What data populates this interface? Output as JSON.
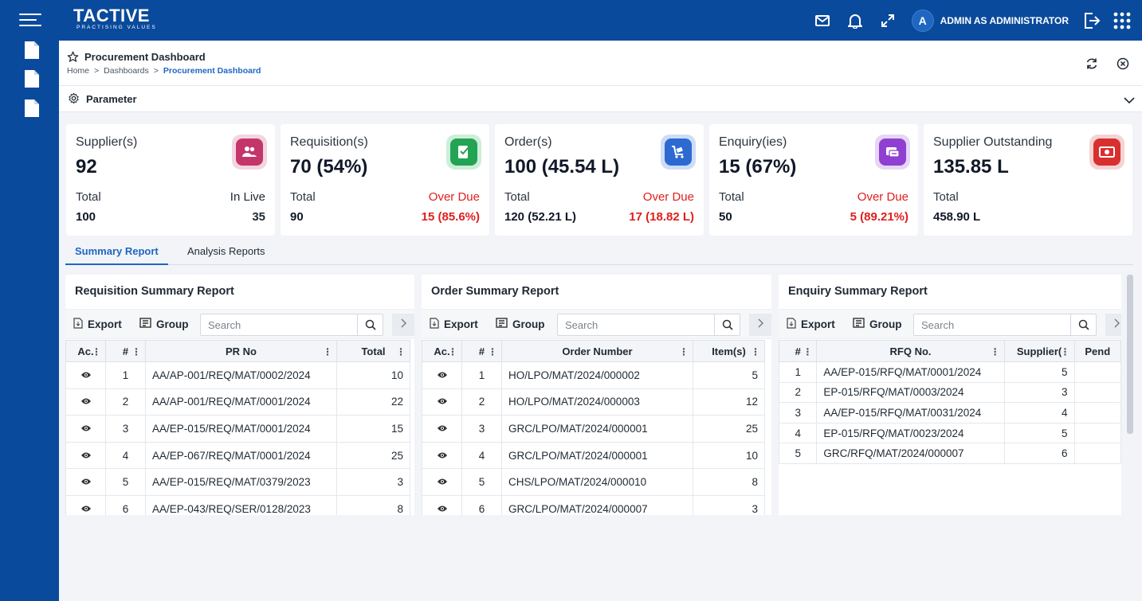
{
  "app": {
    "logo_brand": "TACTIVE",
    "logo_tagline": "PRACTISING VALUES",
    "user_initial": "A",
    "user_name": "ADMIN AS ADMINISTRATOR",
    "icons": [
      "menu-icon",
      "mail-icon",
      "bell-icon",
      "expand-icon",
      "logout-icon",
      "apps-grid-icon"
    ]
  },
  "sidebar": {
    "items": [
      "document-icon",
      "document-icon",
      "document-icon"
    ]
  },
  "page": {
    "title": "Procurement Dashboard",
    "breadcrumb": [
      "Home",
      "Dashboards",
      "Procurement Dashboard"
    ],
    "parameter_label": "Parameter"
  },
  "cards": [
    {
      "label": "Supplier(s)",
      "value": "92",
      "sub1_label": "Total",
      "sub1_value": "100",
      "sub2_label": "In Live",
      "sub2_value": "35",
      "sub2_color": "#1f2933",
      "badge_outer": "#f3d5e0",
      "badge_inner": "#c4366b",
      "icon": "users-icon"
    },
    {
      "label": "Requisition(s)",
      "value": "70 (54%)",
      "sub1_label": "Total",
      "sub1_value": "90",
      "sub2_label": "Over Due",
      "sub2_value": "15 (85.6%)",
      "sub2_color": "#e01e1e",
      "badge_outer": "#cdeed9",
      "badge_inner": "#23a354",
      "icon": "requisition-icon"
    },
    {
      "label": "Order(s)",
      "value": "100 (45.54 L)",
      "sub1_label": "Total",
      "sub1_value": "120 (52.21 L)",
      "sub2_label": "Over Due",
      "sub2_value": "17 (18.82 L)",
      "sub2_color": "#e01e1e",
      "badge_outer": "#cfdcf5",
      "badge_inner": "#2c6ad1",
      "icon": "cart-icon"
    },
    {
      "label": "Enquiry(ies)",
      "value": "15 (67%)",
      "sub1_label": "Total",
      "sub1_value": "50",
      "sub2_label": "Over Due",
      "sub2_value": "5 (89.21%)",
      "sub2_color": "#e01e1e",
      "badge_outer": "#e6d6f5",
      "badge_inner": "#8f3fd1",
      "icon": "enquiry-icon"
    },
    {
      "label": "Supplier Outstanding",
      "value": "135.85 L",
      "sub1_label": "Total",
      "sub1_value": "458.90 L",
      "sub2_label": "",
      "sub2_value": "",
      "sub2_color": "#1f2933",
      "badge_outer": "#f6d3d3",
      "badge_inner": "#d8302f",
      "icon": "cash-icon"
    }
  ],
  "tabs": [
    "Summary Report",
    "Analysis Reports"
  ],
  "toolbar": {
    "export": "Export",
    "group": "Group",
    "search_placeholder": "Search"
  },
  "requisition_report": {
    "title": "Requisition Summary Report",
    "columns": [
      "Ac.",
      "#",
      "PR No",
      "Total"
    ],
    "rows": [
      [
        "1",
        "AA/AP-001/REQ/MAT/0002/2024",
        "10"
      ],
      [
        "2",
        "AA/AP-001/REQ/MAT/0001/2024",
        "22"
      ],
      [
        "3",
        "AA/EP-015/REQ/MAT/0001/2024",
        "15"
      ],
      [
        "4",
        "AA/EP-067/REQ/MAT/0001/2024",
        "25"
      ],
      [
        "5",
        "AA/EP-015/REQ/MAT/0379/2023",
        "3"
      ],
      [
        "6",
        "AA/EP-043/REQ/SER/0128/2023",
        "8"
      ]
    ]
  },
  "order_report": {
    "title": "Order Summary Report",
    "columns": [
      "Ac.",
      "#",
      "Order Number",
      "Item(s)"
    ],
    "rows": [
      [
        "1",
        "HO/LPO/MAT/2024/000002",
        "5"
      ],
      [
        "2",
        "HO/LPO/MAT/2024/000003",
        "12"
      ],
      [
        "3",
        "GRC/LPO/MAT/2024/000001",
        "25"
      ],
      [
        "4",
        "GRC/LPO/MAT/2024/000001",
        "10"
      ],
      [
        "5",
        "CHS/LPO/MAT/2024/000010",
        "8"
      ],
      [
        "6",
        "GRC/LPO/MAT/2024/000007",
        "3"
      ]
    ]
  },
  "enquiry_report": {
    "title": "Enquiry Summary Report",
    "columns": [
      "#",
      "RFQ No.",
      "Supplier(",
      "Pend"
    ],
    "rows": [
      [
        "1",
        "AA/EP-015/RFQ/MAT/0001/2024",
        "5"
      ],
      [
        "2",
        "EP-015/RFQ/MAT/0003/2024",
        "3"
      ],
      [
        "3",
        "AA/EP-015/RFQ/MAT/0031/2024",
        "4"
      ],
      [
        "4",
        "EP-015/RFQ/MAT/0023/2024",
        "5"
      ],
      [
        "5",
        "GRC/RFQ/MAT/2024/000007",
        "6"
      ]
    ]
  }
}
